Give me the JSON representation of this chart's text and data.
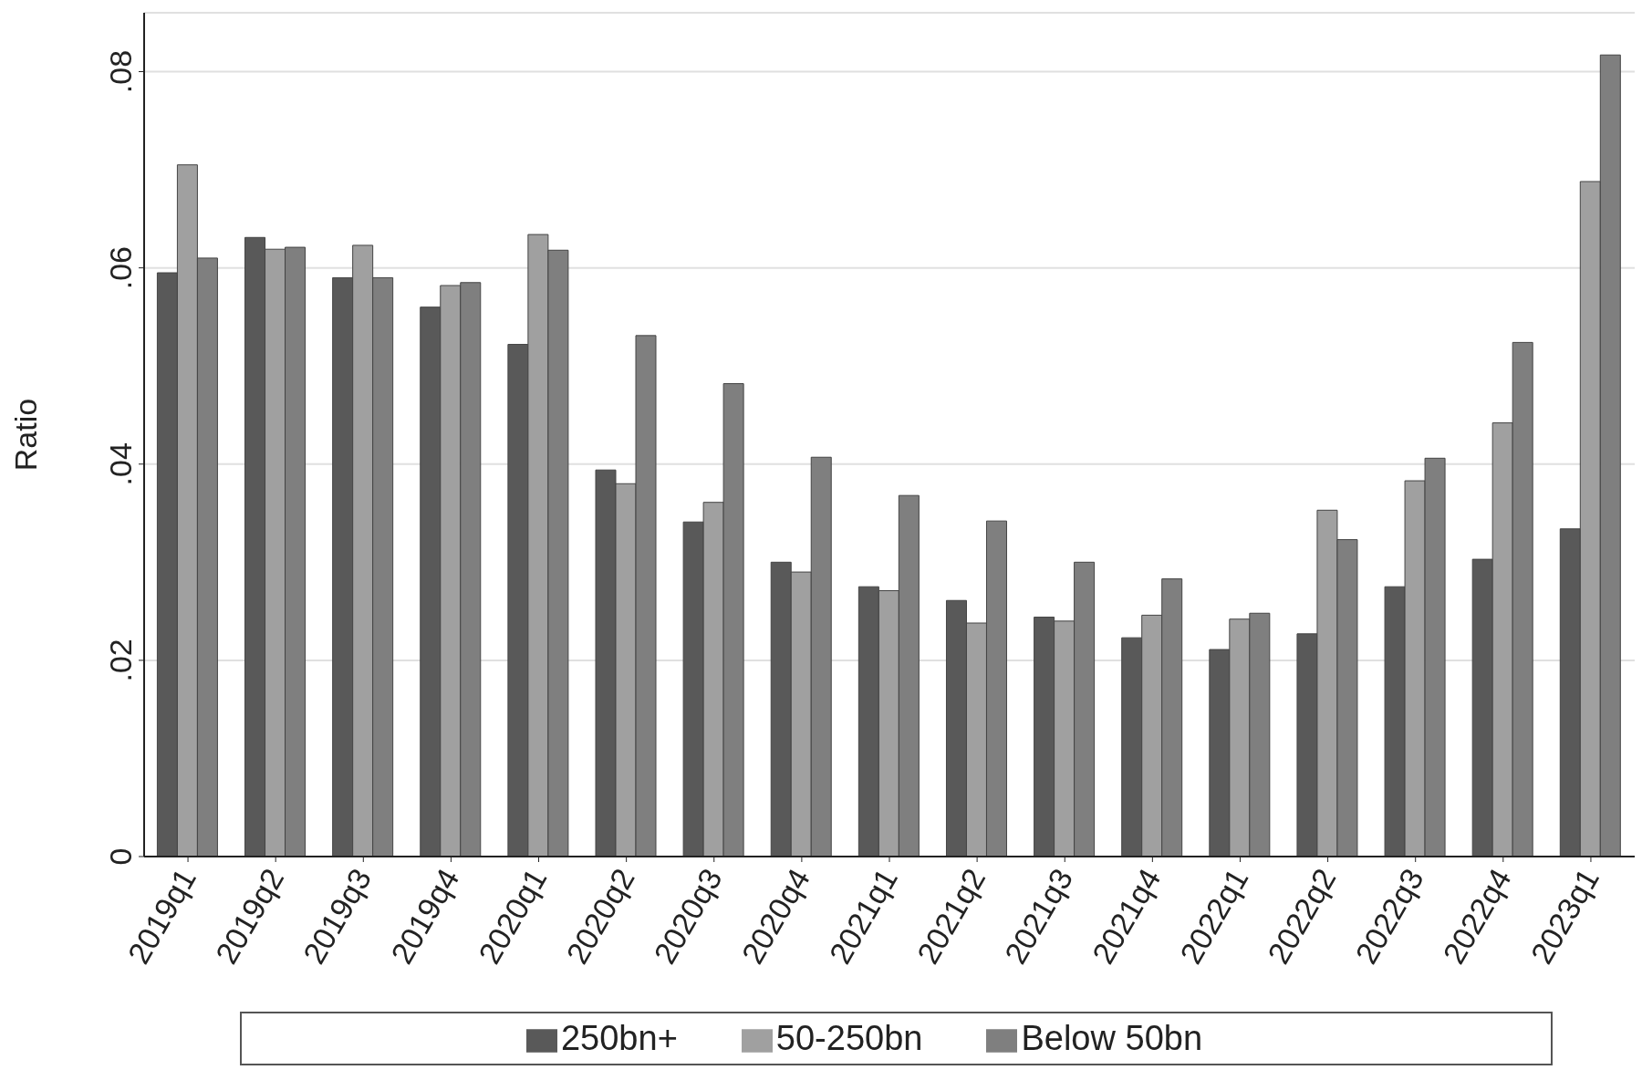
{
  "chart_data": {
    "type": "bar",
    "ylabel": "Ratio",
    "categories": [
      "2019q1",
      "2019q2",
      "2019q3",
      "2019q4",
      "2020q1",
      "2020q2",
      "2020q3",
      "2020q4",
      "2021q1",
      "2021q2",
      "2021q3",
      "2021q4",
      "2022q1",
      "2022q2",
      "2022q3",
      "2022q4",
      "2023q1"
    ],
    "series": [
      {
        "name": "250bn+",
        "color": "#595959",
        "values": [
          0.0595,
          0.0631,
          0.059,
          0.056,
          0.0522,
          0.0394,
          0.0341,
          0.03,
          0.0275,
          0.0261,
          0.0244,
          0.0223,
          0.0211,
          0.0227,
          0.0275,
          0.0303,
          0.0334
        ]
      },
      {
        "name": "50-250bn",
        "color": "#a0a0a0",
        "values": [
          0.0705,
          0.0619,
          0.0623,
          0.0582,
          0.0634,
          0.038,
          0.0361,
          0.029,
          0.0271,
          0.0238,
          0.024,
          0.0246,
          0.0242,
          0.0353,
          0.0383,
          0.0442,
          0.0688
        ]
      },
      {
        "name": "Below 50bn",
        "color": "#7f7f7f",
        "values": [
          0.061,
          0.0621,
          0.059,
          0.0585,
          0.0618,
          0.0531,
          0.0482,
          0.0407,
          0.0368,
          0.0342,
          0.03,
          0.0283,
          0.0248,
          0.0323,
          0.0406,
          0.0524,
          0.0817
        ]
      }
    ],
    "ylim": [
      0,
      0.086
    ],
    "yticks": [
      0,
      {
        "value": 0.02,
        "label": ".02"
      },
      {
        "value": 0.04,
        "label": ".04"
      },
      {
        "value": 0.06,
        "label": ".06"
      },
      {
        "value": 0.08,
        "label": ".08"
      }
    ],
    "grid": "y",
    "legend": "bottom"
  }
}
